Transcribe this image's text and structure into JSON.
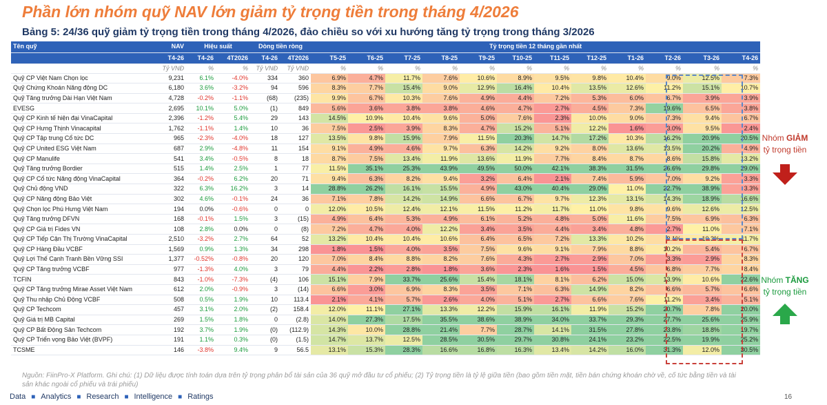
{
  "title": "Phần lớn nhóm quỹ NAV lớn giảm tỷ trọng tiền trong tháng 4/2026",
  "table_title": "Bảng 5: 24/36 quỹ giảm tỷ trọng tiền trong tháng 4/2026, đảo chiều so với xu hướng tăng tỷ trọng trong tháng 3/2026",
  "header": {
    "fund": "Tên quỹ",
    "nav": "NAV",
    "perf": "Hiệu suất",
    "flow": "Dòng tiền ròng",
    "cash": "Tỷ trọng tiền 12 tháng gần nhất",
    "cols": [
      "T4-26",
      "T4-26",
      "4T2026",
      "T4-26",
      "4T2026",
      "T5-25",
      "T6-25",
      "T7-25",
      "T8-25",
      "T9-25",
      "T10-25",
      "T11-25",
      "T12-25",
      "T1-26",
      "T2-26",
      "T3-26",
      "T4-26"
    ],
    "units": [
      "Tỷ VNĐ",
      "%",
      "%",
      "Tỷ VNĐ",
      "Tỷ VNĐ",
      "%",
      "%",
      "%",
      "%",
      "%",
      "%",
      "%",
      "%",
      "%",
      "%",
      "%",
      "%"
    ]
  },
  "rows": [
    {
      "name": "Quỹ CP Việt Nam Chọn lọc",
      "nav": "9,231",
      "p1": "6.1%",
      "p2": "-4.0%",
      "f1": "334",
      "f2": "360",
      "cash": [
        "6.9%",
        "4.7%",
        "11.7%",
        "7.6%",
        "10.6%",
        "8.9%",
        "9.5%",
        "9.8%",
        "10.4%",
        "9.0%",
        "12.5%",
        "7.3%"
      ]
    },
    {
      "name": "Quỹ Chứng Khoán Năng động DC",
      "nav": "6,180",
      "p1": "3.6%",
      "p2": "-3.2%",
      "f1": "94",
      "f2": "596",
      "cash": [
        "8.3%",
        "7.7%",
        "15.4%",
        "9.0%",
        "12.9%",
        "16.4%",
        "10.4%",
        "13.5%",
        "12.6%",
        "11.2%",
        "15.1%",
        "10.7%"
      ]
    },
    {
      "name": "Quỹ Tăng trưởng Dài Hạn Việt Nam",
      "nav": "4,728",
      "p1": "-0.2%",
      "p2": "-1.1%",
      "f1": "(68)",
      "f2": "(235)",
      "cash": [
        "9.9%",
        "6.7%",
        "10.3%",
        "7.6%",
        "4.9%",
        "4.4%",
        "7.2%",
        "5.3%",
        "6.0%",
        "6.7%",
        "3.9%",
        "3.9%"
      ]
    },
    {
      "name": "EVESG",
      "nav": "2,695",
      "p1": "10.1%",
      "p2": "5.0%",
      "f1": "(1)",
      "f2": "849",
      "cash": [
        "5.6%",
        "3.6%",
        "3.8%",
        "3.8%",
        "4.6%",
        "4.7%",
        "2.7%",
        "4.5%",
        "7.3%",
        "19.6%",
        "6.5%",
        "3.8%"
      ]
    },
    {
      "name": "Quỹ CP Kinh tế hiện đại VinaCapital",
      "nav": "2,396",
      "p1": "-1.2%",
      "p2": "5.4%",
      "f1": "29",
      "f2": "143",
      "cash": [
        "14.5%",
        "10.9%",
        "10.4%",
        "9.6%",
        "5.0%",
        "7.6%",
        "2.3%",
        "10.0%",
        "9.0%",
        "7.3%",
        "9.4%",
        "6.7%"
      ]
    },
    {
      "name": "Quỹ CP Hưng Thịnh Vinacapital",
      "nav": "1,762",
      "p1": "-1.1%",
      "p2": "1.4%",
      "f1": "10",
      "f2": "36",
      "cash": [
        "7.5%",
        "2.5%",
        "3.9%",
        "8.3%",
        "4.7%",
        "15.2%",
        "5.1%",
        "12.2%",
        "1.6%",
        "3.0%",
        "9.5%",
        "2.4%"
      ]
    },
    {
      "name": "Quỹ CP Tập trung Cổ tức DC",
      "nav": "965",
      "p1": "-2.3%",
      "p2": "-4.0%",
      "f1": "18",
      "f2": "127",
      "cash": [
        "13.5%",
        "9.8%",
        "15.9%",
        "7.9%",
        "11.5%",
        "20.3%",
        "14.7%",
        "17.2%",
        "10.3%",
        "16.2%",
        "20.9%",
        "20.5%"
      ]
    },
    {
      "name": "Quỹ CP United ESG Việt Nam",
      "nav": "687",
      "p1": "2.9%",
      "p2": "-4.8%",
      "f1": "11",
      "f2": "154",
      "cash": [
        "9.1%",
        "4.9%",
        "4.6%",
        "9.7%",
        "6.3%",
        "14.2%",
        "9.2%",
        "8.0%",
        "13.6%",
        "13.5%",
        "20.2%",
        "4.9%"
      ]
    },
    {
      "name": "Quỹ CP Manulife",
      "nav": "541",
      "p1": "3.4%",
      "p2": "-0.5%",
      "f1": "8",
      "f2": "18",
      "cash": [
        "8.7%",
        "7.5%",
        "13.4%",
        "11.9%",
        "13.6%",
        "11.9%",
        "7.7%",
        "8.4%",
        "8.7%",
        "8.6%",
        "15.8%",
        "13.2%"
      ]
    },
    {
      "name": "Quỹ Tăng trưởng Bordier",
      "nav": "515",
      "p1": "1.4%",
      "p2": "2.5%",
      "f1": "1",
      "f2": "77",
      "cash": [
        "11.5%",
        "35.1%",
        "25.3%",
        "43.9%",
        "49.5%",
        "50.0%",
        "42.1%",
        "38.3%",
        "31.5%",
        "26.6%",
        "29.8%",
        "29.0%"
      ]
    },
    {
      "name": "Quỹ CP Cổ tức Năng động VinaCapital",
      "nav": "364",
      "p1": "-0.2%",
      "p2": "6.2%",
      "f1": "20",
      "f2": "71",
      "cash": [
        "9.4%",
        "6.3%",
        "8.2%",
        "9.4%",
        "3.2%",
        "6.4%",
        "2.1%",
        "7.4%",
        "5.9%",
        "7.0%",
        "9.2%",
        "3.3%"
      ]
    },
    {
      "name": "Quỹ Chủ động VND",
      "nav": "322",
      "p1": "6.3%",
      "p2": "16.2%",
      "f1": "3",
      "f2": "14",
      "cash": [
        "28.8%",
        "26.2%",
        "16.1%",
        "15.5%",
        "4.9%",
        "43.0%",
        "40.4%",
        "29.0%",
        "11.0%",
        "22.7%",
        "38.9%",
        "3.3%"
      ]
    },
    {
      "name": "Quỹ CP Năng động Bảo Việt",
      "nav": "302",
      "p1": "4.6%",
      "p2": "-0.1%",
      "f1": "24",
      "f2": "36",
      "cash": [
        "7.1%",
        "7.8%",
        "14.2%",
        "14.9%",
        "6.6%",
        "6.7%",
        "9.7%",
        "12.3%",
        "13.1%",
        "14.3%",
        "18.9%",
        "16.6%"
      ]
    },
    {
      "name": "Quỹ Chọn lọc Phú Hưng Việt Nam",
      "nav": "194",
      "p1": "0.0%",
      "p2": "-0.6%",
      "f1": "0",
      "f2": "0",
      "cash": [
        "12.0%",
        "10.5%",
        "12.4%",
        "12.1%",
        "11.5%",
        "11.2%",
        "11.7%",
        "11.0%",
        "9.8%",
        "9.6%",
        "12.6%",
        "12.5%"
      ]
    },
    {
      "name": "Quỹ Tăng trưởng DFVN",
      "nav": "168",
      "p1": "-0.1%",
      "p2": "1.5%",
      "f1": "3",
      "f2": "(15)",
      "cash": [
        "4.9%",
        "6.4%",
        "5.3%",
        "4.9%",
        "6.1%",
        "5.2%",
        "4.8%",
        "5.0%",
        "11.6%",
        "7.5%",
        "6.9%",
        "6.3%"
      ]
    },
    {
      "name": "Quỹ CP Giá trị Fides VN",
      "nav": "108",
      "p1": "2.8%",
      "p2": "0.0%",
      "f1": "0",
      "f2": "(8)",
      "cash": [
        "7.2%",
        "4.7%",
        "4.0%",
        "12.2%",
        "3.4%",
        "3.5%",
        "4.4%",
        "3.4%",
        "4.8%",
        "2.7%",
        "11.0%",
        "7.1%"
      ]
    },
    {
      "name": "Quỹ CP Tiếp Cận Thị Trường VinaCapital",
      "nav": "2,510",
      "p1": "-3.2%",
      "p2": "2.7%",
      "f1": "64",
      "f2": "52",
      "cash": [
        "13.2%",
        "10.4%",
        "10.4%",
        "10.6%",
        "6.4%",
        "6.5%",
        "7.2%",
        "13.3%",
        "10.2%",
        "9.1%",
        "10.3%",
        "11.7%"
      ]
    },
    {
      "name": "Quỹ CP Hàng Đầu VCBF",
      "nav": "1,569",
      "p1": "0.9%",
      "p2": "1.3%",
      "f1": "34",
      "f2": "298",
      "cash": [
        "1.8%",
        "1.5%",
        "4.0%",
        "3.5%",
        "7.5%",
        "9.6%",
        "9.1%",
        "7.9%",
        "8.8%",
        "10.2%",
        "5.4%",
        "6.7%"
      ]
    },
    {
      "name": "Quỹ Lợi Thế Cạnh Tranh Bền Vững SSI",
      "nav": "1,377",
      "p1": "-0.52%",
      "p2": "-0.8%",
      "f1": "20",
      "f2": "120",
      "cash": [
        "7.0%",
        "8.4%",
        "8.8%",
        "8.2%",
        "7.6%",
        "4.3%",
        "2.7%",
        "2.9%",
        "7.0%",
        "3.3%",
        "2.9%",
        "8.3%"
      ]
    },
    {
      "name": "Quỹ CP Tăng trưởng VCBF",
      "nav": "977",
      "p1": "-1.3%",
      "p2": "4.0%",
      "f1": "3",
      "f2": "79",
      "cash": [
        "4.4%",
        "2.2%",
        "2.8%",
        "1.8%",
        "3.6%",
        "2.3%",
        "1.6%",
        "1.5%",
        "4.5%",
        "6.8%",
        "7.7%",
        "8.4%"
      ]
    },
    {
      "name": "TCFIN",
      "nav": "843",
      "p1": "-1.0%",
      "p2": "-7.3%",
      "f1": "(4)",
      "f2": "106",
      "cash": [
        "15.1%",
        "7.9%",
        "33.7%",
        "25.6%",
        "15.4%",
        "18.1%",
        "8.1%",
        "6.2%",
        "15.0%",
        "13.9%",
        "10.6%",
        "22.6%"
      ]
    },
    {
      "name": "Quỹ CP Tăng trưởng Mirae Asset Việt Nam",
      "nav": "612",
      "p1": "2.0%",
      "p2": "-0.9%",
      "f1": "3",
      "f2": "(14)",
      "cash": [
        "6.6%",
        "3.0%",
        "6.9%",
        "8.3%",
        "3.5%",
        "7.1%",
        "6.3%",
        "14.9%",
        "8.2%",
        "6.6%",
        "5.7%",
        "6.6%"
      ]
    },
    {
      "name": "Quỹ Thu nhập Chủ Động VCBF",
      "nav": "508",
      "p1": "0.5%",
      "p2": "1.9%",
      "f1": "10",
      "f2": "113.4",
      "cash": [
        "2.1%",
        "4.1%",
        "5.7%",
        "2.6%",
        "4.0%",
        "5.1%",
        "2.7%",
        "6.6%",
        "7.6%",
        "11.2%",
        "3.4%",
        "5.1%"
      ]
    },
    {
      "name": "Quỹ CP Techcom",
      "nav": "457",
      "p1": "3.1%",
      "p2": "2.0%",
      "f1": "(2)",
      "f2": "158.4",
      "cash": [
        "12.0%",
        "11.1%",
        "27.1%",
        "13.3%",
        "12.2%",
        "15.9%",
        "16.1%",
        "11.9%",
        "15.2%",
        "20.7%",
        "7.8%",
        "20.0%"
      ]
    },
    {
      "name": "Quỹ Giá trị MB Capital",
      "nav": "269",
      "p1": "1.5%",
      "p2": "1.8%",
      "f1": "0",
      "f2": "(2.8)",
      "cash": [
        "14.0%",
        "27.3%",
        "17.5%",
        "35.5%",
        "38.6%",
        "38.9%",
        "34.0%",
        "33.7%",
        "29.3%",
        "27.7%",
        "25.6%",
        "25.9%"
      ]
    },
    {
      "name": "Quỹ CP Bất Động Sản Techcom",
      "nav": "192",
      "p1": "3.7%",
      "p2": "1.9%",
      "f1": "(0)",
      "f2": "(112.9)",
      "cash": [
        "14.3%",
        "10.0%",
        "28.8%",
        "21.4%",
        "7.7%",
        "28.7%",
        "14.1%",
        "31.5%",
        "27.8%",
        "23.8%",
        "18.8%",
        "19.7%"
      ]
    },
    {
      "name": "Quỹ CP Triển vọng Bảo Việt (BVPF)",
      "nav": "191",
      "p1": "1.1%",
      "p2": "0.3%",
      "f1": "(0)",
      "f2": "(1.5)",
      "cash": [
        "14.7%",
        "13.7%",
        "12.5%",
        "28.5%",
        "30.5%",
        "29.7%",
        "30.8%",
        "24.1%",
        "23.2%",
        "22.5%",
        "19.9%",
        "25.2%"
      ]
    },
    {
      "name": "TCSME",
      "nav": "146",
      "p1": "-3.8%",
      "p2": "9.4%",
      "f1": "9",
      "f2": "56.5",
      "cash": [
        "13.1%",
        "15.3%",
        "28.3%",
        "16.6%",
        "16.8%",
        "16.3%",
        "13.4%",
        "14.2%",
        "16.0%",
        "31.3%",
        "12.0%",
        "30.5%"
      ]
    }
  ],
  "side": {
    "giam_prefix": "Nhóm ",
    "giam_strong": "GIẢM",
    "giam_suffix": "tỷ trọng tiền",
    "tang_prefix": "Nhóm ",
    "tang_strong": "TĂNG",
    "tang_suffix": "tỷ trọng tiền"
  },
  "source": "Nguồn: FiinPro-X Platform. Ghi chú: (1) Dữ liệu được tính toán dựa trên tỷ trọng phân bổ tài sản của 36 quỹ mở đầu tư cổ phiếu; (2) Tỷ trọng tiền là tỷ lệ giữa tiền (bao gồm tiền mặt, tiền bán chứng khoán chờ về, cố tức bằng tiền và tài sản khác ngoài cổ phiếu và trái phiếu)",
  "footer": [
    "Data",
    "Analytics",
    "Research",
    "Intelligence",
    "Ratings"
  ],
  "page_number": "16",
  "colors": {
    "orange": "#ee7d3a",
    "navy": "#1f3864",
    "header_blue": "#2e62b8",
    "green": "#63be7b",
    "red_text": "#e0332b",
    "green_text": "#1a9a3d"
  }
}
